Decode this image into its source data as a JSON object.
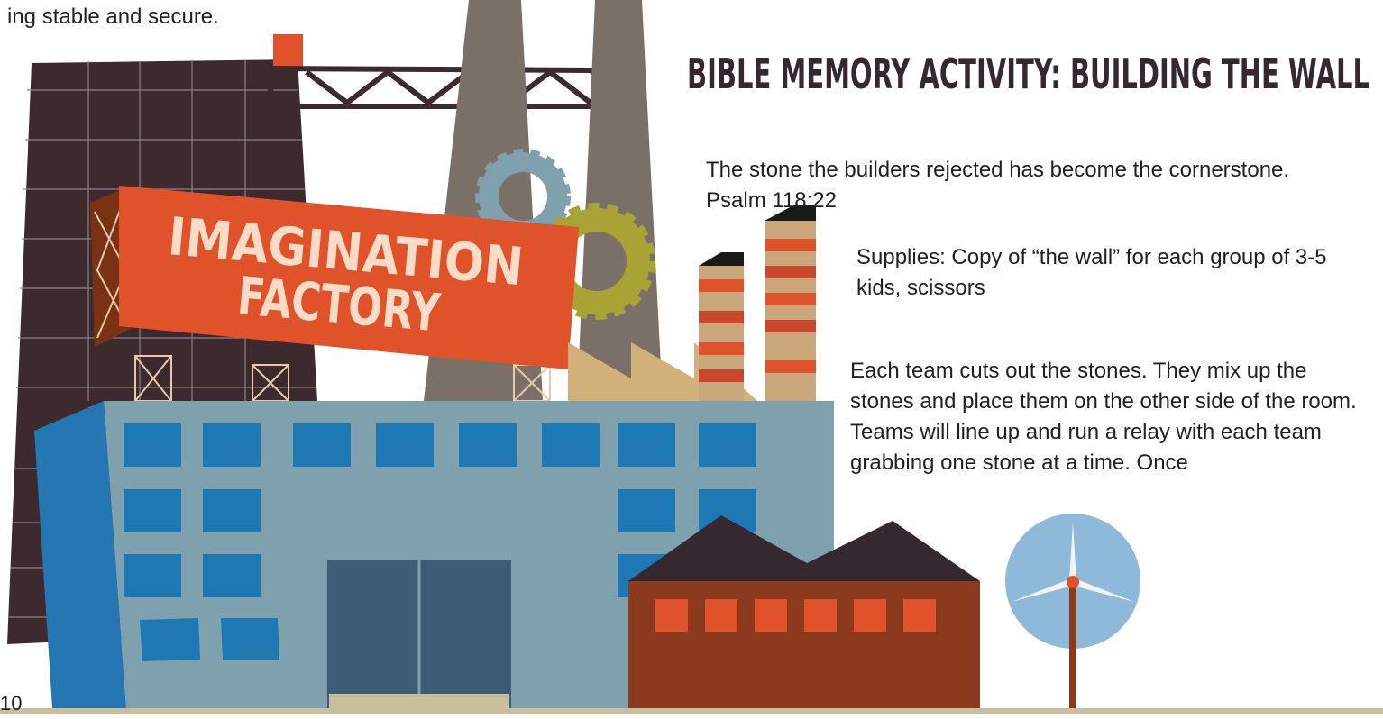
{
  "page": {
    "carryover": "ing stable and secure.",
    "heading": "BIBLE MEMORY ACTIVITY: BUILDING THE WALL",
    "verse": "The stone the builders rejected has become the cornerstone. Psalm 118:22",
    "supplies": "Supplies: Copy of “the wall” for each group of 3-5 kids, scissors",
    "instructions": "Each team cuts out the stones. They mix up the stones and place them on the other side of the room. Teams will line up and run a relay with each team grabbing one stone at a time. Once",
    "sign": {
      "line1": "IMAGINATION",
      "line2": "FACTORY"
    },
    "page_number": "10"
  }
}
